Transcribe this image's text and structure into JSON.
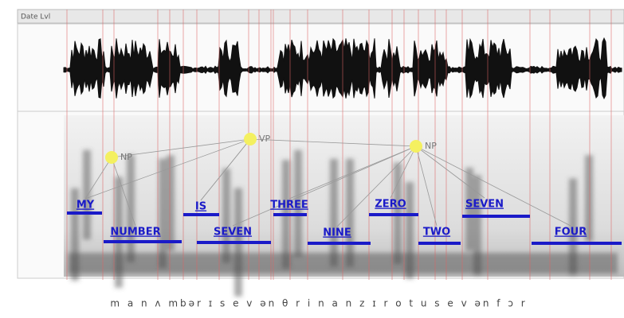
{
  "header": {
    "label": "Date  Lvl"
  },
  "words": [
    "MY",
    "NUMBER",
    "IS",
    "SEVEN",
    "THREE",
    "NINE",
    "ZERO",
    "TWO",
    "SEVEN",
    "FOUR"
  ],
  "nodes": [
    "NP",
    "VP",
    "NP"
  ],
  "transcription": "m a n ʌ mbər ɪ s e v ən θ r i n a n z ɪ r o t u s e v ən f ɔ r"
}
